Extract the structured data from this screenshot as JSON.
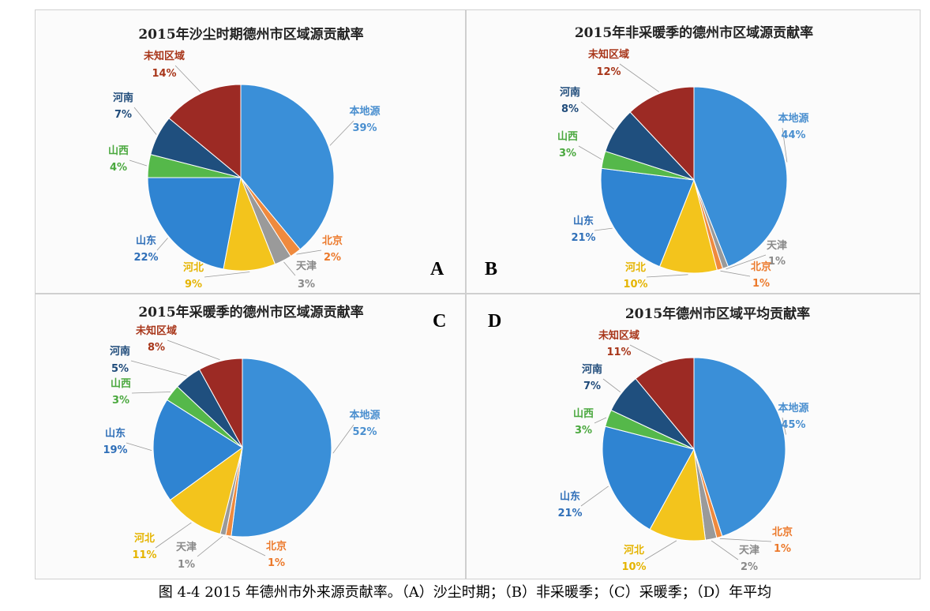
{
  "panel_letters": [
    "A",
    "B",
    "C",
    "D"
  ],
  "caption": "图 4-4 2015 年德州市外来源贡献率。（A）沙尘时期；（B）非采暖季；（C）采暖季；（D）年平均",
  "colors": {
    "本地源": "#3a8fd8",
    "北京": "#ef8a3e",
    "天津": "#9a9a9a",
    "河北": "#f3c41c",
    "山东": "#2f84d2",
    "山西": "#55b84a",
    "河南": "#1f4f7e",
    "未知区域": "#9c2a24"
  },
  "label_colors": {
    "本地源": "#4a8fcf",
    "北京": "#ec7a2c",
    "天津": "#8a8a8a",
    "河北": "#e5b400",
    "山东": "#2f6fb8",
    "山西": "#4aa83e",
    "河南": "#1f4b7a",
    "未知区域": "#a8361a"
  },
  "chart_data": [
    {
      "type": "pie",
      "title": "2015年沙尘时期德州市区域源贡献率",
      "categories": [
        "本地源",
        "北京",
        "天津",
        "河北",
        "山东",
        "山西",
        "河南",
        "未知区域"
      ],
      "values": [
        39,
        2,
        3,
        9,
        22,
        4,
        7,
        14
      ],
      "value_labels": [
        "39%",
        "2%",
        "3%",
        "9%",
        "22%",
        "4%",
        "7%",
        "14%"
      ]
    },
    {
      "type": "pie",
      "title": "2015年非采暖季的德州市区域源贡献率",
      "categories": [
        "本地源",
        "天津",
        "北京",
        "河北",
        "山东",
        "山西",
        "河南",
        "未知区域"
      ],
      "values": [
        44,
        1,
        1,
        10,
        21,
        3,
        8,
        12
      ],
      "value_labels": [
        "44%",
        "1%",
        "1%",
        "10%",
        "21%",
        "3%",
        "8%",
        "12%"
      ]
    },
    {
      "type": "pie",
      "title": "2015年采暖季的德州市区域源贡献率",
      "categories": [
        "本地源",
        "北京",
        "天津",
        "河北",
        "山东",
        "山西",
        "河南",
        "未知区域"
      ],
      "values": [
        52,
        1,
        1,
        11,
        19,
        3,
        5,
        8
      ],
      "value_labels": [
        "52%",
        "1%",
        "1%",
        "11%",
        "19%",
        "3%",
        "5%",
        "8%"
      ]
    },
    {
      "type": "pie",
      "title": "2015年德州市区域平均贡献率",
      "categories": [
        "本地源",
        "北京",
        "天津",
        "河北",
        "山东",
        "山西",
        "河南",
        "未知区域"
      ],
      "values": [
        45,
        1,
        2,
        10,
        21,
        3,
        7,
        11
      ],
      "value_labels": [
        "45%",
        "1%",
        "2%",
        "10%",
        "21%",
        "3%",
        "7%",
        "11%"
      ]
    }
  ]
}
